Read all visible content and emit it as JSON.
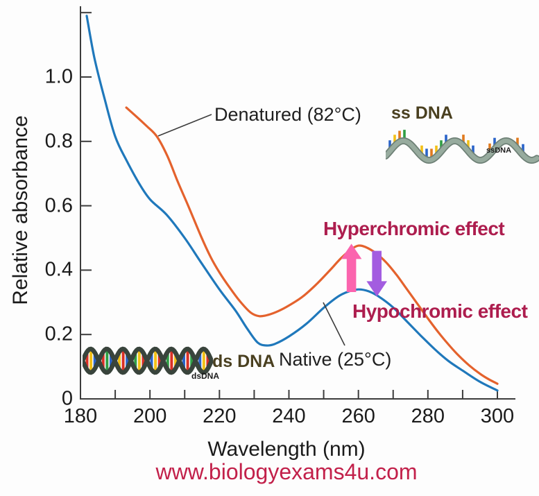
{
  "page": {
    "watermark": "www.biologyexams4u.com",
    "watermark_color": "#c2204a",
    "background": "#fdfdfd"
  },
  "chart_data": {
    "type": "line",
    "title": "",
    "xlabel": "Wavelength (nm)",
    "ylabel": "Relative absorbance",
    "xlim": [
      180,
      300
    ],
    "ylim": [
      0,
      1.2
    ],
    "grid": false,
    "legend_position": "none (labels annotated on plot)",
    "x_ticks": [
      {
        "label": "180",
        "value": 180
      },
      {
        "label": "200",
        "value": 200
      },
      {
        "label": "220",
        "value": 220
      },
      {
        "label": "240",
        "value": 240
      },
      {
        "label": "260",
        "value": 260
      },
      {
        "label": "280",
        "value": 280
      },
      {
        "label": "300",
        "value": 300
      }
    ],
    "x_minor_tick_step": 10,
    "y_ticks": [
      {
        "label": "1.0",
        "value": 1.0
      },
      {
        "label": "0.8",
        "value": 0.8
      },
      {
        "label": "0.6",
        "value": 0.6
      },
      {
        "label": "0.4",
        "value": 0.4
      },
      {
        "label": "0.2",
        "value": 0.2
      },
      {
        "label": "0",
        "value": 0
      }
    ],
    "y_unlabeled_ticks": [
      1.2
    ],
    "series": [
      {
        "name": "Denatured (82°C)",
        "color": "#e4622d",
        "x": [
          193.2,
          196,
          199,
          202,
          205,
          208,
          211,
          214.7,
          217.5,
          220,
          223,
          226,
          229,
          231.5,
          234,
          237,
          240,
          244,
          248,
          252,
          255,
          258,
          260,
          262,
          265,
          268,
          271,
          274,
          277,
          280,
          283,
          286,
          289,
          292,
          295,
          297.5,
          300
        ],
        "values": [
          0.905,
          0.878,
          0.848,
          0.815,
          0.755,
          0.675,
          0.6,
          0.505,
          0.44,
          0.393,
          0.345,
          0.302,
          0.268,
          0.257,
          0.261,
          0.273,
          0.29,
          0.318,
          0.357,
          0.402,
          0.437,
          0.465,
          0.476,
          0.472,
          0.453,
          0.424,
          0.385,
          0.34,
          0.295,
          0.25,
          0.207,
          0.168,
          0.133,
          0.103,
          0.078,
          0.061,
          0.047
        ]
      },
      {
        "name": "Native (25°C)",
        "color": "#1f78bb",
        "x": [
          181.8,
          184,
          187,
          190,
          193.2,
          196.8,
          200,
          204.8,
          210,
          214.7,
          220,
          224.7,
          228,
          231,
          233.5,
          236,
          240,
          245,
          250,
          254,
          257,
          260,
          263,
          266,
          270,
          274,
          278,
          282,
          286,
          290,
          295,
          300
        ],
        "values": [
          1.19,
          1.06,
          0.93,
          0.815,
          0.742,
          0.671,
          0.62,
          0.572,
          0.5,
          0.424,
          0.34,
          0.273,
          0.218,
          0.175,
          0.166,
          0.171,
          0.194,
          0.233,
          0.283,
          0.317,
          0.333,
          0.34,
          0.334,
          0.317,
          0.284,
          0.24,
          0.196,
          0.154,
          0.117,
          0.088,
          0.053,
          0.026
        ]
      }
    ],
    "peak_wavelength_nm": 260,
    "peak_absorbance_native": 0.34,
    "peak_absorbance_denatured": 0.48
  },
  "annotations": {
    "denatured_label": "Denatured (82°C)",
    "native_label": "Native (25°C)",
    "ssdna_label": "ss DNA",
    "ssdna_caption": "ssDNA",
    "dsdna_label": "ds DNA",
    "dsdna_caption": "dsDNA",
    "hyperchromic": "Hyperchromic effect",
    "hypochromic": "Hypochromic effect",
    "effect_color": "#ad1d4e",
    "dna_text_color": "#4a4020",
    "axis_color": "#3c3c3c",
    "arrows": [
      {
        "direction": "up",
        "color": "#fb64ae",
        "x_nm": 258.0,
        "a_from": 0.332,
        "a_to": 0.482
      },
      {
        "direction": "down",
        "color": "#a35ce0",
        "x_nm": 265.3,
        "a_from": 0.46,
        "a_to": 0.318
      }
    ]
  }
}
